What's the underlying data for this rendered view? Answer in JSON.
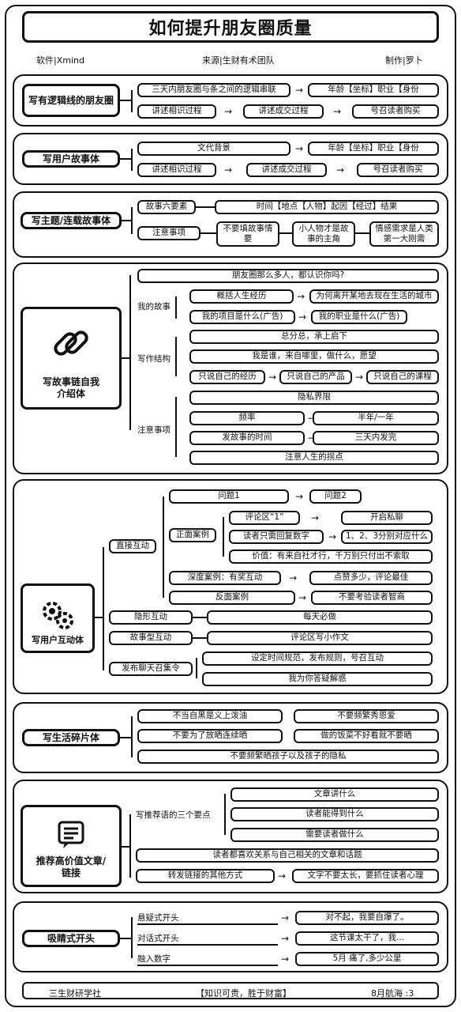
{
  "header": {
    "title": "如何提升朋友圈质量",
    "software": "软件|Xmind",
    "source": "来源|生财有术团队",
    "author": "制作|罗卜"
  },
  "s1": {
    "root": "写有逻辑线的朋友圈",
    "a": "三天内朋友圈与条之间的逻辑串联",
    "b": "年龄【坐标】职业【身份",
    "c": "讲述相识过程",
    "d": "讲述成交过程",
    "e": "号召读者购买"
  },
  "s2": {
    "root": "写用户故事体",
    "a": "文代背景",
    "b": "年龄【坐标】职业【身份",
    "c": "讲述相识过程",
    "d": "讲述成交过程",
    "e": "号召读者购买"
  },
  "s3": {
    "root": "写主题/连载故事体",
    "a": "故事六要素",
    "b": "时间【地点【人物】起因【经过】结果",
    "c": "注意事项",
    "d": "不要填故事情要",
    "e": "小人物才是故事的主角",
    "f": "情感需求是人类第一大刚需"
  },
  "s4": {
    "root": "写故事链自我介绍体",
    "top": "朋友圈那么多人，都认识你吗?",
    "b1": "我的故事",
    "b1a": "概括人生经历",
    "b1a2": "为何离开某地去现在生活的城市",
    "b1b": "我的项目是什么(广告)",
    "b1b2": "我的职业是什么(广告)",
    "b2": "写作结构",
    "b2a": "总分总，承上启下",
    "b2b": "我是谁，来自哪里，做什么，愿望",
    "b2c": "只说自己的经历",
    "b2d": "只说自己的产品",
    "b2e": "只说自己的课程",
    "b3": "注意事项",
    "b3a": "隐私界限",
    "b3b": "频率",
    "b3b2": "半年/一年",
    "b3c": "发故事的时间",
    "b3c2": "三天内发完",
    "b3d": "注意人生的拐点"
  },
  "s5": {
    "root": "写用户互动体",
    "b1": "直接互动",
    "b1a": "问题1",
    "b1a2": "问题2",
    "b1b": "正面案例",
    "b1b1": "评论区“1”",
    "b1b1r": "开启私聊",
    "b1b2": "读者只需回复数字",
    "b1b2r": "1、2、3分别对应什么",
    "b1b3": "价值：有来自社才行，千万别只付出不索取",
    "b1c": "深度案例：有奖互动",
    "b1c2": "点赞多少，评论最佳",
    "b1d": "反面案例",
    "b1d2": "不要考验读者智商",
    "b2": "隐形互动",
    "b2a": "每天必做",
    "b3": "故事型互动",
    "b3a": "评论区写小作文",
    "b4": "发布聊天召集令",
    "b4a": "设定时间规范，发布规则，号召互动",
    "b4b": "我为你答疑解惑"
  },
  "s6": {
    "root": "写生活碎片体",
    "a": "不当自黑是义上泼油",
    "b": "不要频繁秀恩爱",
    "c": "不要为了放晒连续晒",
    "d": "做的饭菜不好看就不要晒",
    "e": "不要频繁晒孩子以及孩子的隐私"
  },
  "s7": {
    "root": "推荐高价值文章/链接",
    "b1": "写推荐语的三个要点",
    "b1a": "文章讲什么",
    "b1b": "读者能得到什么",
    "b1c": "需要读者做什么",
    "b2": "读者都喜欢关系与自己相关的文章和话题",
    "b3": "转发链接的其他方式",
    "b3a": "文字不要太长，要抓住读者心理"
  },
  "s8": {
    "root": "吸睛式开头",
    "a": "悬疑式开头",
    "a2": "对不起，我要自爆了。",
    "b": "对话式开头",
    "b2": "这节课太干了，我...",
    "c": "融入数字",
    "c2": "5月 痛了,多少公里"
  },
  "footer": {
    "left": "三生财研学社",
    "mid": "【知识可贵，胜于财富】",
    "right": "8月航海 :3"
  }
}
